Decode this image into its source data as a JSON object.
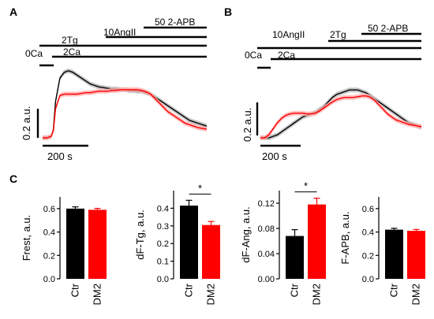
{
  "panels": {
    "A": {
      "letter": "A",
      "protocol": {
        "apb": "50 2-APB",
        "angii": "10AngII",
        "tg": "2Tg",
        "ca0": "0Ca",
        "ca2": "2Ca"
      },
      "scale_y": "0.2 a.u.",
      "scale_x": "200 s"
    },
    "B": {
      "letter": "B",
      "protocol": {
        "apb": "50 2-APB",
        "angii": "10AngII",
        "tg": "2Tg",
        "ca0": "0Ca",
        "ca2": "2Ca"
      },
      "scale_y": "0.2 a.u.",
      "scale_x": "200 s"
    },
    "C": {
      "letter": "C"
    }
  },
  "colors": {
    "ctr": "#000000",
    "dm2": "#ff0000",
    "ctr_band": "#b8b8b8",
    "dm2_band": "#ffb0b0"
  },
  "chart_data": [
    {
      "type": "line",
      "panel": "A",
      "x_units": "s",
      "series": [
        {
          "name": "",
          "color": "#000000",
          "x": [
            0,
            20,
            40,
            50,
            60,
            80,
            100,
            120,
            140,
            160,
            180,
            200,
            220,
            240,
            260,
            280,
            300,
            320,
            340,
            360,
            380,
            400,
            420,
            440,
            460,
            480,
            500,
            520,
            540,
            560,
            580,
            600,
            620,
            640,
            660,
            680,
            700,
            720,
            740,
            760
          ],
          "y": [
            0.0,
            0.0,
            0.01,
            0.06,
            0.25,
            0.41,
            0.45,
            0.46,
            0.45,
            0.43,
            0.41,
            0.39,
            0.37,
            0.36,
            0.35,
            0.345,
            0.34,
            0.335,
            0.335,
            0.33,
            0.33,
            0.325,
            0.325,
            0.32,
            0.32,
            0.31,
            0.3,
            0.28,
            0.26,
            0.24,
            0.22,
            0.2,
            0.18,
            0.16,
            0.14,
            0.12,
            0.11,
            0.1,
            0.09,
            0.08
          ]
        },
        {
          "name": "",
          "color": "#ff0000",
          "x": [
            0,
            20,
            40,
            50,
            60,
            80,
            100,
            120,
            140,
            160,
            180,
            200,
            220,
            240,
            260,
            280,
            300,
            320,
            340,
            360,
            380,
            400,
            420,
            440,
            460,
            480,
            500,
            520,
            540,
            560,
            580,
            600,
            620,
            640,
            660,
            680,
            700,
            720,
            740,
            760
          ],
          "y": [
            0.0,
            0.0,
            0.01,
            0.05,
            0.2,
            0.29,
            0.3,
            0.3,
            0.3,
            0.3,
            0.305,
            0.31,
            0.31,
            0.315,
            0.32,
            0.32,
            0.32,
            0.325,
            0.325,
            0.33,
            0.33,
            0.33,
            0.33,
            0.33,
            0.325,
            0.315,
            0.3,
            0.27,
            0.24,
            0.21,
            0.18,
            0.16,
            0.14,
            0.12,
            0.1,
            0.09,
            0.08,
            0.07,
            0.065,
            0.06
          ]
        }
      ]
    },
    {
      "type": "line",
      "panel": "B",
      "x_units": "s",
      "series": [
        {
          "name": "",
          "color": "#000000",
          "x": [
            0,
            20,
            40,
            60,
            80,
            100,
            120,
            140,
            160,
            180,
            200,
            220,
            240,
            260,
            280,
            300,
            320,
            340,
            360,
            380,
            400,
            420,
            440,
            460,
            480,
            500,
            520,
            540,
            560,
            580,
            600,
            620,
            640,
            660,
            680,
            700,
            720,
            740,
            760
          ],
          "y": [
            0.0,
            0.0,
            0.0,
            0.01,
            0.02,
            0.04,
            0.06,
            0.08,
            0.1,
            0.12,
            0.14,
            0.15,
            0.16,
            0.17,
            0.19,
            0.21,
            0.24,
            0.27,
            0.29,
            0.3,
            0.31,
            0.32,
            0.32,
            0.32,
            0.31,
            0.3,
            0.28,
            0.26,
            0.24,
            0.22,
            0.2,
            0.18,
            0.16,
            0.14,
            0.12,
            0.1,
            0.09,
            0.08,
            0.07
          ]
        },
        {
          "name": "",
          "color": "#ff0000",
          "x": [
            0,
            20,
            40,
            60,
            80,
            100,
            120,
            140,
            160,
            180,
            200,
            220,
            240,
            260,
            280,
            300,
            320,
            340,
            360,
            380,
            400,
            420,
            440,
            460,
            480,
            500,
            520,
            540,
            560,
            580,
            600,
            620,
            640,
            660,
            680,
            700,
            720,
            740,
            760
          ],
          "y": [
            0.0,
            0.0,
            0.02,
            0.06,
            0.1,
            0.13,
            0.15,
            0.16,
            0.165,
            0.165,
            0.165,
            0.16,
            0.16,
            0.165,
            0.18,
            0.2,
            0.22,
            0.24,
            0.255,
            0.265,
            0.27,
            0.27,
            0.27,
            0.275,
            0.28,
            0.28,
            0.27,
            0.25,
            0.22,
            0.19,
            0.16,
            0.14,
            0.12,
            0.11,
            0.1,
            0.09,
            0.085,
            0.08,
            0.075
          ]
        }
      ]
    },
    {
      "type": "bar",
      "panel": "C1",
      "categories": [
        "Ctr",
        "DM2"
      ],
      "values": [
        0.6,
        0.59
      ],
      "errors": [
        0.015,
        0.012
      ],
      "colors": [
        "#000000",
        "#ff0000"
      ],
      "ylabel": "Frest, a.u.",
      "ylim": [
        0,
        0.7
      ],
      "yticks": [
        "0.0",
        "0.2",
        "0.4",
        "0.6"
      ],
      "significance": ""
    },
    {
      "type": "bar",
      "panel": "C2",
      "categories": [
        "Ctr",
        "DM2"
      ],
      "values": [
        0.415,
        0.305
      ],
      "errors": [
        0.03,
        0.02
      ],
      "colors": [
        "#000000",
        "#ff0000"
      ],
      "ylabel": "dF-Tg, a.u.",
      "ylim": [
        0,
        0.5
      ],
      "yticks": [
        "0.0",
        "0.1",
        "0.2",
        "0.3",
        "0.4"
      ],
      "significance": "*"
    },
    {
      "type": "bar",
      "panel": "C3",
      "categories": [
        "Ctr",
        "DM2"
      ],
      "values": [
        0.068,
        0.118
      ],
      "errors": [
        0.01,
        0.01
      ],
      "colors": [
        "#000000",
        "#ff0000"
      ],
      "ylabel": "dF-Ang, a.u.",
      "ylim": [
        0,
        0.14
      ],
      "yticks": [
        "0.00",
        "0.04",
        "0.08",
        "0.12"
      ],
      "significance": "*"
    },
    {
      "type": "bar",
      "panel": "C4",
      "categories": [
        "Ctr",
        "DM2"
      ],
      "values": [
        0.42,
        0.41
      ],
      "errors": [
        0.012,
        0.012
      ],
      "colors": [
        "#000000",
        "#ff0000"
      ],
      "ylabel": "F-APB, a.u.",
      "ylim": [
        0,
        0.7
      ],
      "yticks": [
        "0.0",
        "0.2",
        "0.4",
        "0.6"
      ],
      "significance": ""
    }
  ]
}
